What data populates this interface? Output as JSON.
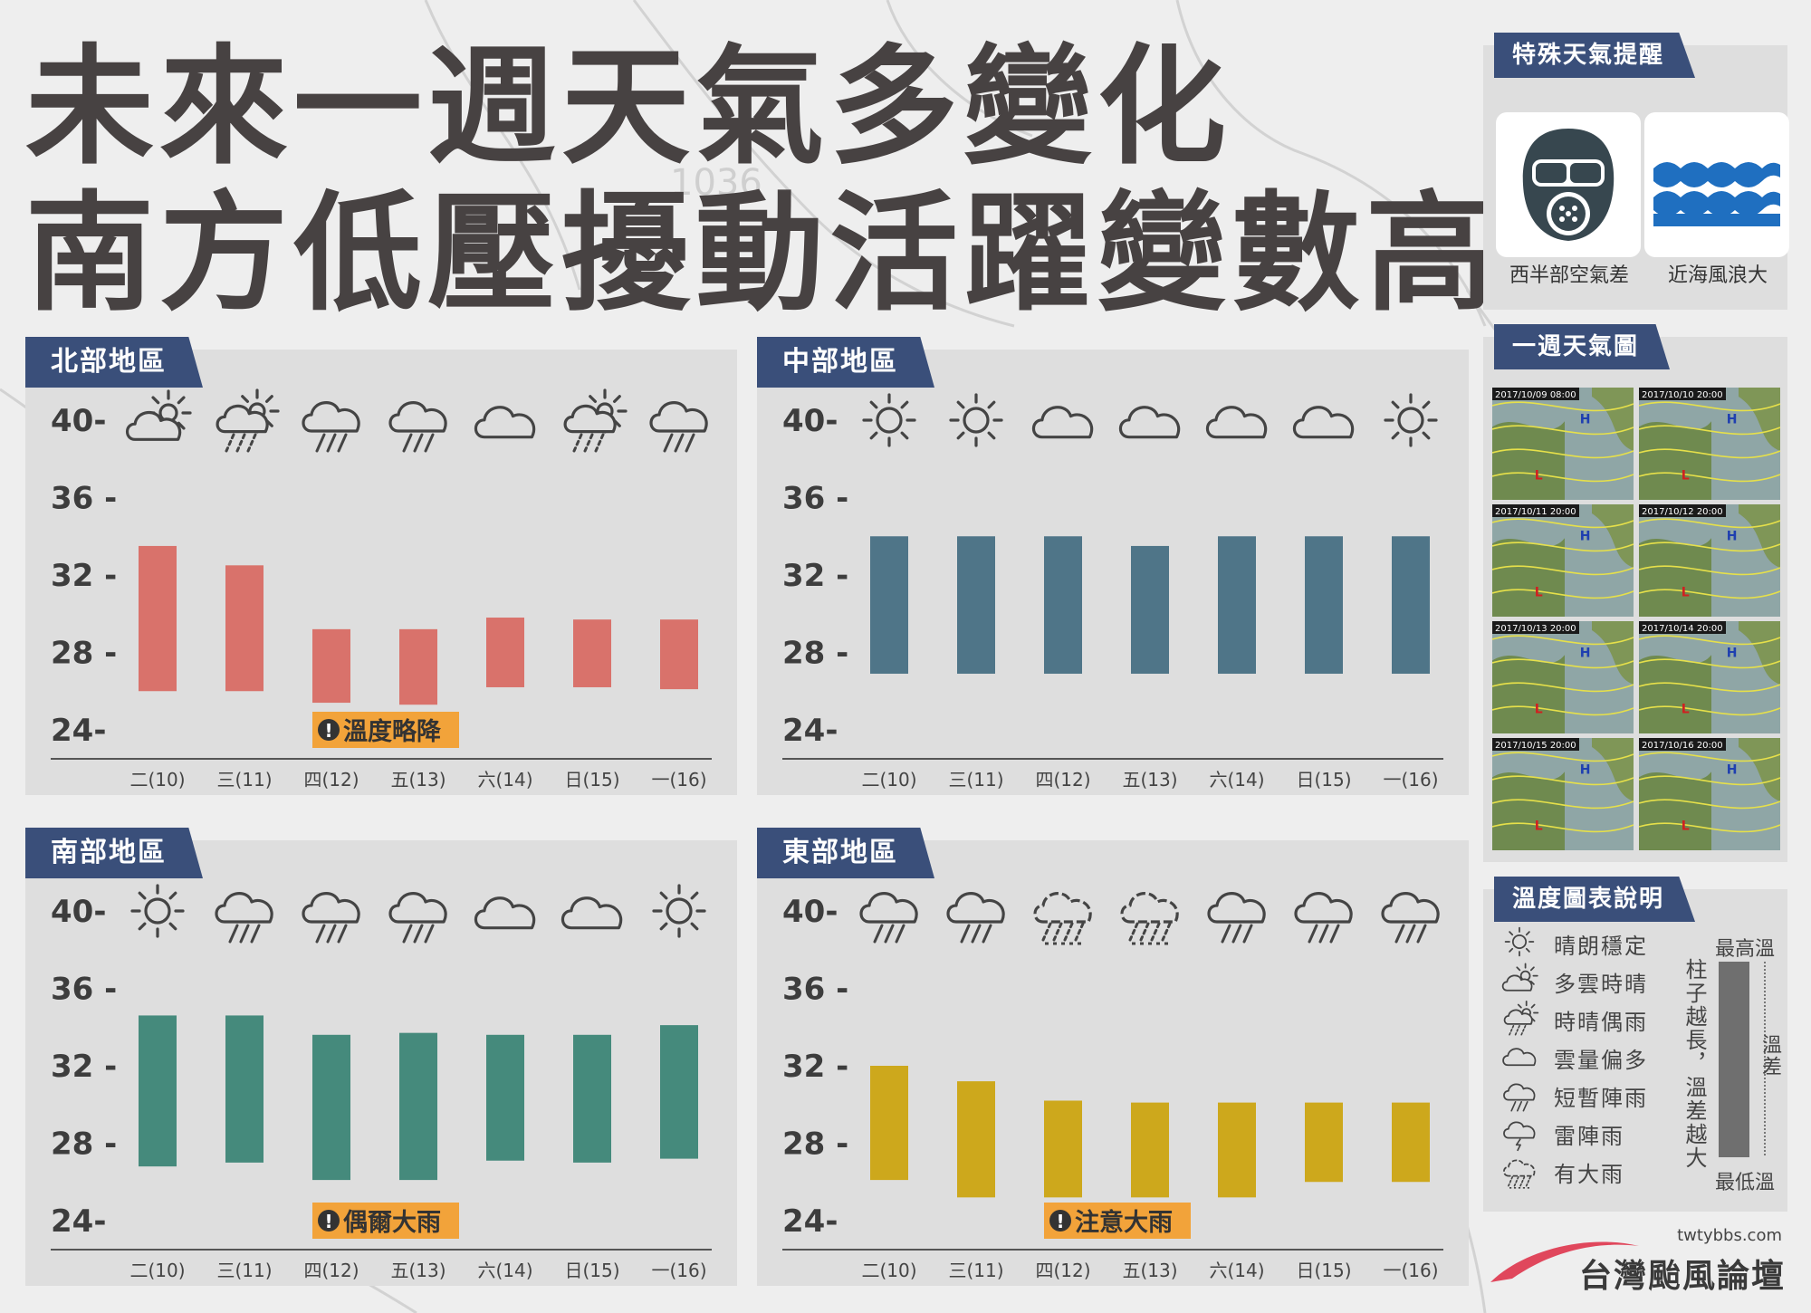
{
  "title_line1": "未來一週天氣多變化",
  "title_line2": "南方低壓擾動活躍變數高",
  "colors": {
    "north": "#d9726b",
    "central": "#4f7588",
    "south": "#458a7c",
    "east": "#cda81c",
    "tag": "#3a4f7a",
    "note": "#f2a33a"
  },
  "special": {
    "heading": "特殊天氣提醒",
    "items": [
      {
        "label": "西半部空氣差",
        "icon": "gas-mask-icon"
      },
      {
        "label": "近海風浪大",
        "icon": "waves-icon"
      }
    ]
  },
  "weekmap": {
    "heading": "一週天氣圖",
    "frames": [
      "2017/10/09 08:00",
      "2017/10/10 20:00",
      "2017/10/11 20:00",
      "2017/10/12 20:00",
      "2017/10/13 20:00",
      "2017/10/14 20:00",
      "2017/10/15 20:00",
      "2017/10/16 20:00"
    ]
  },
  "legend": {
    "heading": "溫度圖表說明",
    "items": [
      {
        "icon": "sun",
        "label": "晴朗穩定"
      },
      {
        "icon": "partly",
        "label": "多雲時晴"
      },
      {
        "icon": "sunshower",
        "label": "時晴偶雨"
      },
      {
        "icon": "cloud",
        "label": "雲量偏多"
      },
      {
        "icon": "rain",
        "label": "短暫陣雨"
      },
      {
        "icon": "thunder",
        "label": "雷陣雨"
      },
      {
        "icon": "heavy",
        "label": "有大雨"
      }
    ],
    "max_label": "最高溫",
    "min_label": "最低溫",
    "diff_label": "溫差",
    "note": "柱子越長，溫差越大"
  },
  "brand": {
    "url": "twtybbs.com",
    "name": "台灣颱風論壇"
  },
  "chart_data": [
    {
      "type": "bar",
      "region": "北部地區",
      "color_key": "north",
      "categories": [
        "二(10)",
        "三(11)",
        "四(12)",
        "五(13)",
        "六(14)",
        "日(15)",
        "一(16)"
      ],
      "y_ticks": [
        "40-",
        "36 -",
        "32 -",
        "28 -",
        "24-"
      ],
      "ylim": [
        24,
        40
      ],
      "weather": [
        "partly",
        "sunshower",
        "rain",
        "rain",
        "cloud",
        "sunshower",
        "rain"
      ],
      "series": [
        {
          "name": "最高溫",
          "values": [
            33.5,
            32.5,
            29.2,
            29.2,
            29.8,
            29.7,
            29.7
          ]
        },
        {
          "name": "最低溫",
          "values": [
            26.0,
            26.0,
            25.4,
            25.3,
            26.2,
            26.2,
            26.1
          ]
        }
      ],
      "note": "溫度略降",
      "note_index": 2
    },
    {
      "type": "bar",
      "region": "中部地區",
      "color_key": "central",
      "categories": [
        "二(10)",
        "三(11)",
        "四(12)",
        "五(13)",
        "六(14)",
        "日(15)",
        "一(16)"
      ],
      "y_ticks": [
        "40-",
        "36 -",
        "32 -",
        "28 -",
        "24-"
      ],
      "ylim": [
        24,
        40
      ],
      "weather": [
        "sun",
        "sun",
        "cloud",
        "cloud",
        "cloud",
        "cloud",
        "sun"
      ],
      "series": [
        {
          "name": "最高溫",
          "values": [
            34.0,
            34.0,
            34.0,
            33.5,
            34.0,
            34.0,
            34.0
          ]
        },
        {
          "name": "最低溫",
          "values": [
            26.9,
            26.9,
            26.9,
            26.9,
            26.9,
            26.9,
            26.9
          ]
        }
      ],
      "note": "",
      "note_index": -1
    },
    {
      "type": "bar",
      "region": "南部地區",
      "color_key": "south",
      "categories": [
        "二(10)",
        "三(11)",
        "四(12)",
        "五(13)",
        "六(14)",
        "日(15)",
        "一(16)"
      ],
      "y_ticks": [
        "40-",
        "36 -",
        "32 -",
        "28 -",
        "24-"
      ],
      "ylim": [
        24,
        40
      ],
      "weather": [
        "sun",
        "rain",
        "rain",
        "rain",
        "cloud",
        "cloud",
        "sun"
      ],
      "series": [
        {
          "name": "最高溫",
          "values": [
            34.6,
            34.6,
            33.6,
            33.7,
            33.6,
            33.6,
            34.1
          ]
        },
        {
          "name": "最低溫",
          "values": [
            26.8,
            27.0,
            26.1,
            26.1,
            27.1,
            27.0,
            27.2
          ]
        }
      ],
      "note": "偶爾大雨",
      "note_index": 2
    },
    {
      "type": "bar",
      "region": "東部地區",
      "color_key": "east",
      "categories": [
        "二(10)",
        "三(11)",
        "四(12)",
        "五(13)",
        "六(14)",
        "日(15)",
        "一(16)"
      ],
      "y_ticks": [
        "40-",
        "36 -",
        "32 -",
        "28 -",
        "24-"
      ],
      "ylim": [
        24,
        40
      ],
      "weather": [
        "rain",
        "rain",
        "heavy",
        "heavy",
        "rain",
        "rain",
        "rain"
      ],
      "series": [
        {
          "name": "最高溫",
          "values": [
            32.0,
            31.2,
            30.2,
            30.1,
            30.1,
            30.1,
            30.1
          ]
        },
        {
          "name": "最低溫",
          "values": [
            26.1,
            25.2,
            25.2,
            25.2,
            25.2,
            26.0,
            26.0
          ]
        }
      ],
      "note": "注意大雨",
      "note_index": 2
    }
  ]
}
